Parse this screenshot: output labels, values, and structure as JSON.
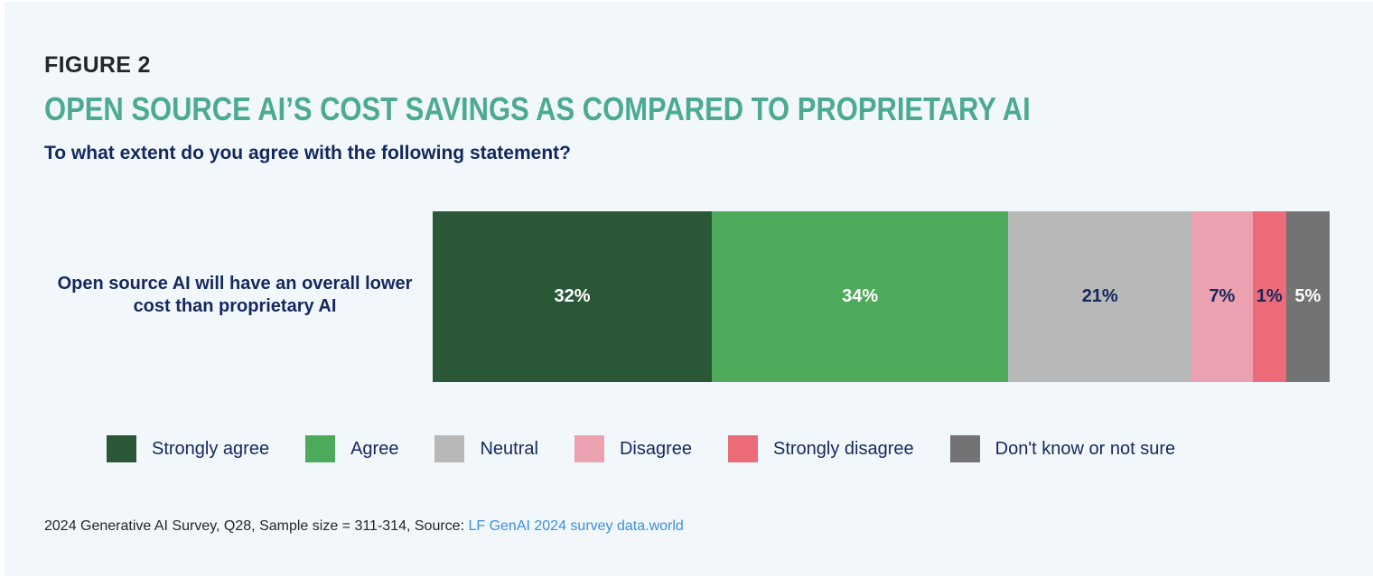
{
  "figure_label": "FIGURE 2",
  "title": "OPEN SOURCE AI’S COST SAVINGS AS COMPARED TO PROPRIETARY AI",
  "subtitle": "To what extent do you agree with the following statement?",
  "footer": {
    "text": "2024 Generative AI Survey, Q28, Sample size = 311-314, Source: ",
    "link_text": "LF GenAI 2024 survey data.world"
  },
  "chart_data": {
    "type": "bar",
    "orientation": "horizontal",
    "stacked": true,
    "title": "OPEN SOURCE AI’S COST SAVINGS AS COMPARED TO PROPRIETARY AI",
    "subtitle": "To what extent do you agree with the following statement?",
    "categories": [
      "Open source AI will have an overall lower cost than proprietary AI"
    ],
    "unit": "%",
    "legend_position": "bottom",
    "grid": false,
    "series": [
      {
        "name": "Strongly agree",
        "values": [
          32
        ],
        "label": "32%",
        "color": "#2a5735",
        "label_color": "#ffffff"
      },
      {
        "name": "Agree",
        "values": [
          34
        ],
        "label": "34%",
        "color": "#4caa5a",
        "label_color": "#ffffff"
      },
      {
        "name": "Neutral",
        "values": [
          21
        ],
        "label": "21%",
        "color": "#b8b8b8",
        "label_color": "#14285f"
      },
      {
        "name": "Disagree",
        "values": [
          7
        ],
        "label": "7%",
        "color": "#eba1b0",
        "label_color": "#14285f"
      },
      {
        "name": "Strongly disagree",
        "values": [
          1
        ],
        "label": "1%",
        "color": "#ec6b78",
        "label_color": "#14285f"
      },
      {
        "name": "Don't know or not sure",
        "values": [
          5
        ],
        "label": "5%",
        "color": "#737274",
        "label_color": "#ffffff"
      }
    ]
  }
}
